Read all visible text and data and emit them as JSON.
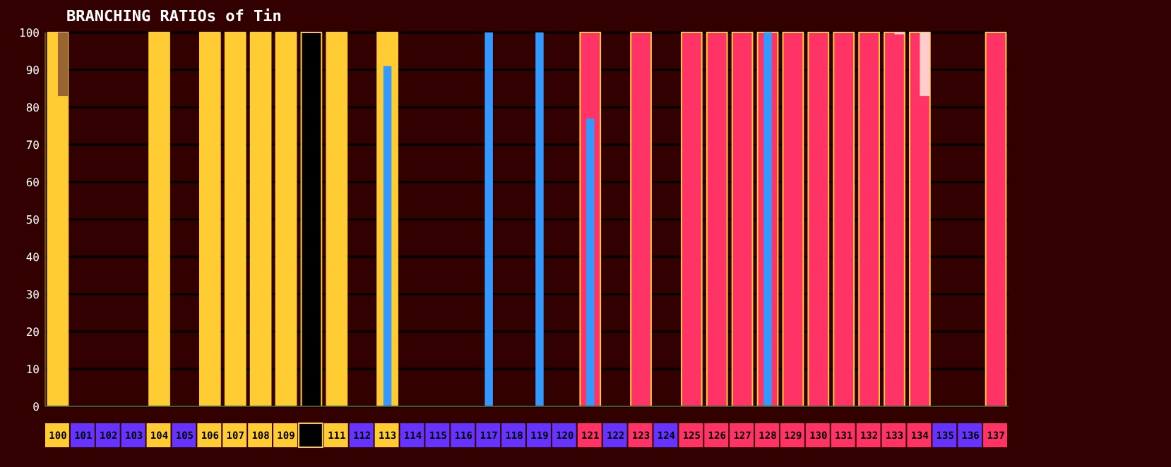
{
  "chart_data": {
    "type": "bar",
    "title": "BRANCHING RATIOs of Tin",
    "categories": [
      "100",
      "101",
      "102",
      "103",
      "104",
      "105",
      "106",
      "107",
      "108",
      "109",
      null,
      "111",
      "112",
      "113",
      "114",
      "115",
      "116",
      "117",
      "118",
      "119",
      "120",
      "121",
      "122",
      "123",
      "124",
      "125",
      "126",
      "127",
      "128",
      "129",
      "130",
      "131",
      "132",
      "133",
      "134",
      "135",
      "136",
      "137"
    ],
    "series": [
      {
        "colors": [
          "#ffcc33",
          null,
          null,
          null,
          "#ffcc33",
          null,
          "#ffcc33",
          "#ffcc33",
          "#ffcc33",
          "#ffcc33",
          "#000000",
          "#ffcc33",
          null,
          "#ffcc33",
          null,
          null,
          null,
          null,
          null,
          null,
          null,
          "#ff3366",
          null,
          "#ff3366",
          null,
          "#ff3366",
          "#ff3366",
          "#ff3366",
          "#ff3366",
          "#ff3366",
          "#ff3366",
          "#ff3366",
          "#ff3366",
          "#ff3366",
          "#ff3366",
          null,
          null,
          "#ff3366"
        ],
        "values": [
          100,
          null,
          null,
          null,
          100,
          null,
          100,
          100,
          100,
          100,
          100,
          100,
          null,
          100,
          null,
          null,
          null,
          null,
          null,
          null,
          null,
          100,
          null,
          100,
          null,
          100,
          100,
          100,
          100,
          100,
          100,
          100,
          100,
          100,
          100,
          null,
          null,
          100
        ]
      },
      {
        "color": "#3399ff",
        "values": [
          null,
          null,
          null,
          null,
          null,
          null,
          null,
          null,
          null,
          null,
          null,
          null,
          null,
          91,
          null,
          null,
          null,
          100,
          null,
          100,
          null,
          77,
          null,
          null,
          null,
          null,
          null,
          null,
          100,
          null,
          null,
          null,
          null,
          null,
          null,
          null,
          null,
          null
        ]
      },
      {
        "colors": [
          "#996633",
          null,
          null,
          null,
          null,
          null,
          null,
          null,
          null,
          null,
          null,
          null,
          null,
          null,
          null,
          null,
          null,
          null,
          null,
          null,
          null,
          null,
          null,
          null,
          null,
          null,
          null,
          null,
          null,
          null,
          null,
          null,
          null,
          "#ffcccc",
          "#ffcccc",
          null,
          null,
          null
        ],
        "values": [
          17,
          null,
          null,
          null,
          null,
          null,
          null,
          null,
          null,
          null,
          null,
          null,
          null,
          null,
          null,
          null,
          null,
          null,
          null,
          null,
          null,
          null,
          null,
          null,
          null,
          null,
          null,
          null,
          null,
          null,
          null,
          null,
          null,
          0.5,
          17,
          null,
          null,
          null
        ],
        "base": [
          83,
          null,
          null,
          null,
          null,
          null,
          null,
          null,
          null,
          null,
          null,
          null,
          null,
          null,
          null,
          null,
          null,
          null,
          null,
          null,
          null,
          null,
          null,
          null,
          null,
          null,
          null,
          null,
          null,
          null,
          null,
          null,
          null,
          99.5,
          83,
          null,
          null,
          null
        ]
      }
    ],
    "ylim": [
      0,
      100
    ],
    "yticks": [
      0,
      10,
      20,
      30,
      40,
      50,
      60,
      70,
      80,
      90,
      100
    ],
    "grid": "y"
  }
}
